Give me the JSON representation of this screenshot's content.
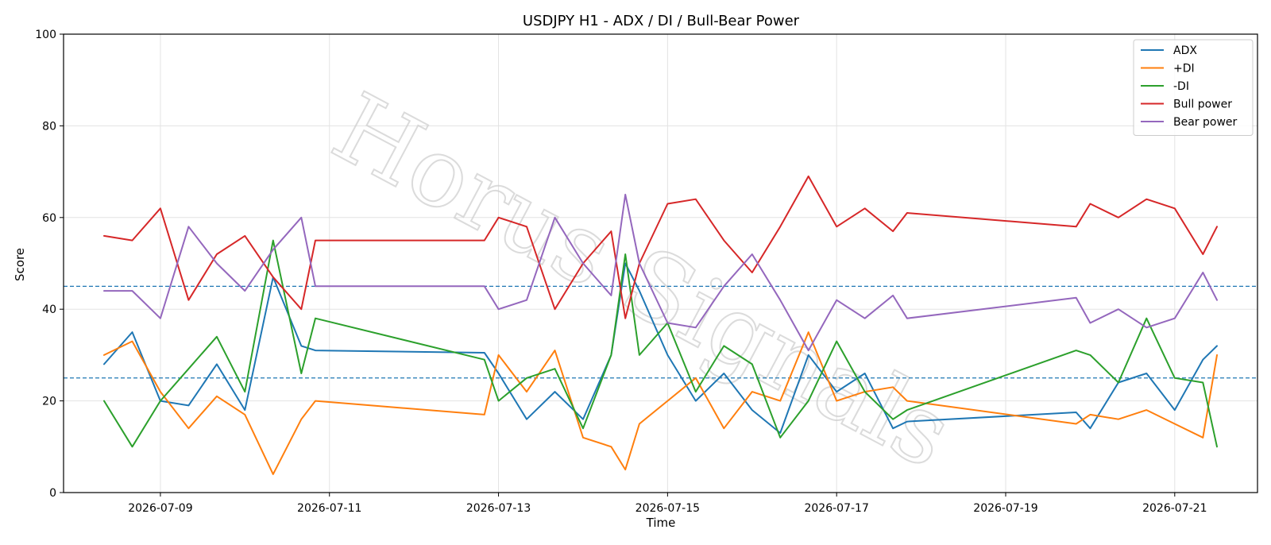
{
  "chart_data": {
    "type": "line",
    "title": "USDJPY H1 - ADX / DI / Bull-Bear Power",
    "xlabel": "Time",
    "ylabel": "Score",
    "ylim": [
      0,
      100
    ],
    "xlim": [
      "2026-07-07T20:30",
      "2026-07-21T23:30"
    ],
    "yticks": [
      0,
      20,
      40,
      60,
      80,
      100
    ],
    "xticks": [
      "2026-07-09",
      "2026-07-11",
      "2026-07-13",
      "2026-07-15",
      "2026-07-17",
      "2026-07-19",
      "2026-07-21"
    ],
    "grid": true,
    "legend": "top-right",
    "watermark": "Horus Signals",
    "reference_lines": [
      {
        "y": 45,
        "style": "dashed",
        "color": "#1f77b4"
      },
      {
        "y": 25,
        "style": "dashed",
        "color": "#1f77b4"
      }
    ],
    "x": [
      "2026-07-08T08:00",
      "2026-07-08T16:00",
      "2026-07-09T00:00",
      "2026-07-09T08:00",
      "2026-07-09T16:00",
      "2026-07-10T00:00",
      "2026-07-10T08:00",
      "2026-07-10T16:00",
      "2026-07-10T20:00",
      "2026-07-12T20:00",
      "2026-07-13T00:00",
      "2026-07-13T08:00",
      "2026-07-13T16:00",
      "2026-07-14T00:00",
      "2026-07-14T08:00",
      "2026-07-14T12:00",
      "2026-07-14T16:00",
      "2026-07-15T00:00",
      "2026-07-15T08:00",
      "2026-07-15T16:00",
      "2026-07-16T00:00",
      "2026-07-16T08:00",
      "2026-07-16T16:00",
      "2026-07-17T00:00",
      "2026-07-17T08:00",
      "2026-07-17T16:00",
      "2026-07-17T20:00",
      "2026-07-19T20:00",
      "2026-07-20T00:00",
      "2026-07-20T08:00",
      "2026-07-20T16:00",
      "2026-07-21T00:00",
      "2026-07-21T08:00",
      "2026-07-21T12:00"
    ],
    "series": [
      {
        "name": "ADX",
        "color": "#1f77b4",
        "values": [
          28,
          35,
          20,
          19,
          28,
          18,
          47,
          32,
          31,
          30.5,
          26,
          16,
          22,
          16,
          30,
          50,
          44,
          30,
          20,
          26,
          18,
          13,
          30,
          22,
          26,
          14,
          15.5,
          17.5,
          14,
          24,
          26,
          18,
          29,
          32
        ]
      },
      {
        "name": "+DI",
        "color": "#ff7f0e",
        "values": [
          30,
          33,
          22,
          14,
          21,
          17,
          4,
          16,
          20,
          17,
          30,
          22,
          31,
          12,
          10,
          5,
          15,
          20,
          25,
          14,
          22,
          20,
          35,
          20,
          22,
          23,
          20,
          15,
          17,
          16,
          18,
          15,
          12,
          30
        ]
      },
      {
        "name": "-DI",
        "color": "#2ca02c",
        "values": [
          20,
          10,
          20,
          27,
          34,
          22,
          55,
          26,
          38,
          29,
          20,
          25,
          27,
          14,
          30,
          52,
          30,
          37,
          22,
          32,
          28,
          12,
          20,
          33,
          22,
          16,
          18,
          31,
          30,
          24,
          38,
          25,
          24,
          10
        ]
      },
      {
        "name": "Bull power",
        "color": "#d62728",
        "values": [
          56,
          55,
          62,
          42,
          52,
          56,
          47,
          40,
          55,
          55,
          60,
          58,
          40,
          50,
          57,
          38,
          50,
          63,
          64,
          55,
          48,
          58,
          69,
          58,
          62,
          57,
          61,
          58,
          63,
          60,
          64,
          62,
          52,
          58
        ]
      },
      {
        "name": "Bear power",
        "color": "#9467bd",
        "values": [
          44,
          44,
          38,
          58,
          50,
          44,
          53,
          60,
          45,
          45,
          40,
          42,
          60,
          50,
          43,
          65,
          50,
          37,
          36,
          45,
          52,
          42,
          31,
          42,
          38,
          43,
          38,
          42.5,
          37,
          40,
          36,
          38,
          48,
          42
        ]
      }
    ]
  }
}
